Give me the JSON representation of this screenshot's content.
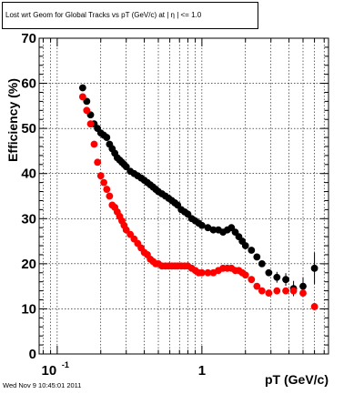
{
  "title": "Lost wrt Geom for Global Tracks vs pT (GeV/c) at |  η | <= 1.0",
  "timestamp": "Wed Nov  9 10:45:01 2011",
  "chart_data": {
    "type": "scatter",
    "xlabel": "pT (GeV/c)",
    "ylabel": "Efficiency (%)",
    "xscale": "log",
    "xlim": [
      0.075,
      7.5
    ],
    "ylim": [
      0,
      70
    ],
    "grid": true,
    "y_ticks": [
      "0",
      "10",
      "20",
      "30",
      "40",
      "50",
      "60",
      "70"
    ],
    "x_tick_labels": [
      {
        "value": 0.1,
        "base": "10",
        "exp": "-1"
      },
      {
        "value": 1,
        "base": "1",
        "exp": ""
      }
    ],
    "series": [
      {
        "color": "#000000",
        "x": [
          0.15,
          0.16,
          0.17,
          0.18,
          0.19,
          0.2,
          0.21,
          0.22,
          0.23,
          0.24,
          0.25,
          0.26,
          0.27,
          0.28,
          0.29,
          0.3,
          0.32,
          0.34,
          0.36,
          0.38,
          0.4,
          0.42,
          0.44,
          0.46,
          0.48,
          0.5,
          0.53,
          0.56,
          0.59,
          0.62,
          0.65,
          0.68,
          0.72,
          0.76,
          0.8,
          0.85,
          0.9,
          0.95,
          1.0,
          1.1,
          1.2,
          1.3,
          1.4,
          1.5,
          1.6,
          1.7,
          1.8,
          1.9,
          2.0,
          2.2,
          2.4,
          2.6,
          2.9,
          3.3,
          3.8,
          4.3,
          5.0,
          6.0
        ],
        "y": [
          59.0,
          56.0,
          53.0,
          51.0,
          50.0,
          49.0,
          48.5,
          48.0,
          46.5,
          45.5,
          44.5,
          43.5,
          43.0,
          42.5,
          42.0,
          41.5,
          40.5,
          40.0,
          39.5,
          39.0,
          38.5,
          38.0,
          37.5,
          37.0,
          36.5,
          36.0,
          35.5,
          35.0,
          34.5,
          34.0,
          33.5,
          33.0,
          32.0,
          31.5,
          31.0,
          30.0,
          29.5,
          29.0,
          28.5,
          28.0,
          27.5,
          27.5,
          27.0,
          27.5,
          28.0,
          27.0,
          26.0,
          25.0,
          24.0,
          23.0,
          21.5,
          20.0,
          18.0,
          17.0,
          16.5,
          14.5,
          15.0,
          19.0
        ],
        "yerr": [
          0.5,
          0.5,
          0.5,
          0.5,
          0.5,
          0.5,
          0.5,
          0.5,
          0.5,
          0.5,
          0.5,
          0.5,
          0.5,
          0.5,
          0.5,
          0.5,
          0.5,
          0.5,
          0.5,
          0.5,
          0.5,
          0.5,
          0.5,
          0.5,
          0.5,
          0.5,
          0.5,
          0.5,
          0.5,
          0.5,
          0.5,
          0.5,
          0.5,
          0.5,
          0.5,
          0.5,
          0.5,
          0.5,
          0.5,
          0.5,
          0.5,
          0.5,
          0.5,
          0.6,
          0.6,
          0.6,
          0.6,
          0.7,
          0.7,
          0.8,
          0.9,
          1.0,
          1.0,
          1.2,
          1.4,
          1.7,
          2.0,
          3.5
        ]
      },
      {
        "color": "#ff0000",
        "x": [
          0.15,
          0.16,
          0.17,
          0.18,
          0.19,
          0.2,
          0.21,
          0.22,
          0.23,
          0.24,
          0.25,
          0.26,
          0.27,
          0.28,
          0.29,
          0.3,
          0.32,
          0.34,
          0.36,
          0.38,
          0.4,
          0.42,
          0.44,
          0.46,
          0.48,
          0.5,
          0.53,
          0.56,
          0.59,
          0.62,
          0.65,
          0.68,
          0.72,
          0.76,
          0.8,
          0.85,
          0.9,
          0.95,
          1.0,
          1.1,
          1.2,
          1.3,
          1.4,
          1.5,
          1.6,
          1.7,
          1.8,
          1.9,
          2.0,
          2.2,
          2.4,
          2.6,
          2.9,
          3.3,
          3.8,
          4.3,
          5.0,
          6.0
        ],
        "y": [
          57.0,
          54.0,
          51.0,
          46.5,
          42.5,
          39.5,
          38.0,
          36.5,
          35.0,
          33.0,
          32.5,
          31.5,
          30.5,
          29.5,
          28.5,
          27.5,
          26.5,
          25.5,
          24.5,
          23.5,
          22.5,
          22.0,
          21.0,
          20.5,
          20.0,
          20.0,
          19.5,
          19.5,
          19.5,
          19.5,
          19.5,
          19.5,
          19.5,
          19.5,
          19.5,
          19.0,
          18.5,
          18.0,
          18.0,
          18.0,
          18.0,
          18.5,
          19.0,
          19.0,
          19.0,
          18.5,
          18.5,
          18.0,
          17.5,
          16.5,
          15.0,
          14.0,
          13.5,
          14.0,
          14.0,
          14.0,
          13.5,
          10.5
        ]
      }
    ]
  }
}
